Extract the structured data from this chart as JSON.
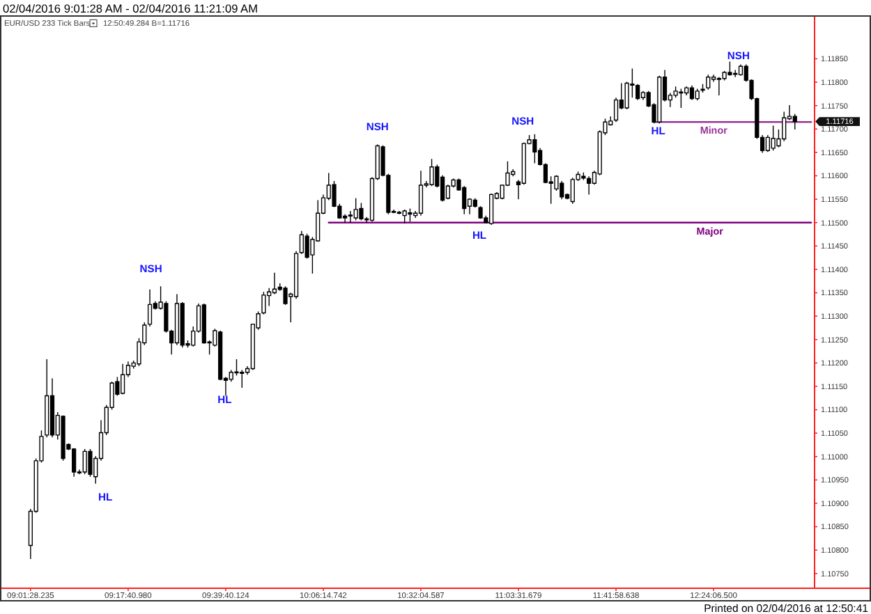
{
  "chart_data": {
    "type": "candlestick",
    "title": "02/04/2016 9:01:28 AM - 02/04/2016 11:21:09 AM",
    "subtitle": "EUR/USD 233 Tick Bars",
    "color": "#000000",
    "categories": [
      "09:01:28.235",
      null,
      null,
      null,
      null,
      null,
      null,
      null,
      null,
      null,
      null,
      null,
      null,
      null,
      null,
      null,
      null,
      null,
      "09:17:40.980",
      null,
      null,
      null,
      null,
      null,
      null,
      null,
      null,
      null,
      null,
      null,
      null,
      null,
      null,
      null,
      null,
      null,
      "09:39:40.124",
      null,
      null,
      null,
      null,
      null,
      null,
      null,
      null,
      null,
      null,
      null,
      null,
      null,
      null,
      null,
      null,
      null,
      "10:06:14.742",
      null,
      null,
      null,
      null,
      null,
      null,
      null,
      null,
      null,
      null,
      null,
      null,
      null,
      null,
      null,
      null,
      null,
      "10:32:04.587",
      null,
      null,
      null,
      null,
      null,
      null,
      null,
      null,
      null,
      null,
      null,
      null,
      null,
      null,
      null,
      null,
      null,
      "11:03:31.679",
      null,
      null,
      null,
      null,
      null,
      null,
      null,
      null,
      null,
      null,
      null,
      null,
      null,
      null,
      null,
      null,
      null,
      "11:41:58.638",
      null,
      null,
      null,
      null,
      null,
      null,
      null,
      null,
      null,
      null,
      null,
      null,
      null,
      null,
      null,
      null,
      null,
      "12:24:06.500",
      null,
      null,
      null,
      null,
      null,
      null,
      null,
      null,
      null,
      null,
      null,
      null,
      null,
      null,
      null,
      null,
      null,
      null
    ],
    "ohlc": [
      [
        1.1081,
        1.10888,
        1.10781,
        1.10883
      ],
      [
        1.10883,
        1.10996,
        1.1088,
        1.10991
      ],
      [
        1.10991,
        1.11056,
        1.10987,
        1.11043
      ],
      [
        1.11046,
        1.11208,
        1.11041,
        1.1113
      ],
      [
        1.1113,
        1.11167,
        1.11041,
        1.11046
      ],
      [
        1.11046,
        1.11095,
        1.11036,
        1.11088
      ],
      [
        1.11086,
        1.11088,
        1.10991,
        1.10996
      ],
      [
        1.11026,
        1.11028,
        1.11014,
        1.11016
      ],
      [
        1.11016,
        1.11018,
        1.10957,
        1.10967
      ],
      [
        1.10967,
        1.10972,
        1.10962,
        1.10965
      ],
      [
        1.10967,
        1.11016,
        1.10962,
        1.11011
      ],
      [
        1.11011,
        1.11016,
        1.10957,
        1.10962
      ],
      [
        1.10957,
        1.11001,
        1.10942,
        1.10996
      ],
      [
        1.10996,
        1.11078,
        1.10991,
        1.11051
      ],
      [
        1.11051,
        1.1111,
        1.11046,
        1.11105
      ],
      [
        1.11105,
        1.1116,
        1.111,
        1.11157
      ],
      [
        1.1116,
        1.1117,
        1.1113,
        1.11133
      ],
      [
        1.11135,
        1.11198,
        1.11133,
        1.11175
      ],
      [
        1.11175,
        1.11203,
        1.1117,
        1.11195
      ],
      [
        1.11193,
        1.11205,
        1.11188,
        1.112
      ],
      [
        1.11198,
        1.11253,
        1.11193,
        1.11245
      ],
      [
        1.11243,
        1.11287,
        1.11238,
        1.11281
      ],
      [
        1.11283,
        1.11357,
        1.11278,
        1.11325
      ],
      [
        1.11327,
        1.11332,
        1.11314,
        1.11317
      ],
      [
        1.11317,
        1.11364,
        1.11314,
        1.1133
      ],
      [
        1.11327,
        1.11332,
        1.11265,
        1.11268
      ],
      [
        1.11268,
        1.11271,
        1.11218,
        1.11243
      ],
      [
        1.11243,
        1.11347,
        1.11238,
        1.11327
      ],
      [
        1.11327,
        1.1133,
        1.11233,
        1.11238
      ],
      [
        1.11241,
        1.11248,
        1.11233,
        1.11238
      ],
      [
        1.11238,
        1.11278,
        1.11235,
        1.11268
      ],
      [
        1.11268,
        1.11327,
        1.11265,
        1.11322
      ],
      [
        1.11324,
        1.11327,
        1.11241,
        1.11243
      ],
      [
        1.11245,
        1.11248,
        1.11218,
        1.11243
      ],
      [
        1.11238,
        1.11273,
        1.11235,
        1.11269
      ],
      [
        1.11266,
        1.11269,
        1.11163,
        1.11165
      ],
      [
        1.11167,
        1.1117,
        1.1113,
        1.11163
      ],
      [
        1.11165,
        1.11185,
        1.1116,
        1.1118
      ],
      [
        1.11179,
        1.11208,
        1.11173,
        1.11181
      ],
      [
        1.1118,
        1.11185,
        1.11147,
        1.11178
      ],
      [
        1.1118,
        1.11193,
        1.11175,
        1.11188
      ],
      [
        1.11188,
        1.11284,
        1.11185,
        1.11283
      ],
      [
        1.11275,
        1.1131,
        1.11271,
        1.11305
      ],
      [
        1.11307,
        1.11352,
        1.11304,
        1.11345
      ],
      [
        1.11344,
        1.1136,
        1.11322,
        1.11352
      ],
      [
        1.1135,
        1.11393,
        1.11347,
        1.11358
      ],
      [
        1.11362,
        1.1137,
        1.11354,
        1.11357
      ],
      [
        1.1136,
        1.11364,
        1.11324,
        1.11327
      ],
      [
        1.11342,
        1.1135,
        1.11287,
        1.11347
      ],
      [
        1.11342,
        1.11439,
        1.11337,
        1.11434
      ],
      [
        1.11436,
        1.11482,
        1.11433,
        1.11474
      ],
      [
        1.11471,
        1.11476,
        1.11423,
        1.11426
      ],
      [
        1.11431,
        1.11469,
        1.11391,
        1.11464
      ],
      [
        1.11461,
        1.11548,
        1.11459,
        1.1152
      ],
      [
        1.1152,
        1.1156,
        1.11518,
        1.11553
      ],
      [
        1.11552,
        1.11606,
        1.11548,
        1.1158
      ],
      [
        1.11581,
        1.11589,
        1.11533,
        1.11535
      ],
      [
        1.11535,
        1.1154,
        1.11508,
        1.1151
      ],
      [
        1.11514,
        1.11518,
        1.115,
        1.1151
      ],
      [
        1.11514,
        1.11525,
        1.115,
        1.11516
      ],
      [
        1.1151,
        1.11552,
        1.11505,
        1.11528
      ],
      [
        1.1153,
        1.11542,
        1.11505,
        1.11508
      ],
      [
        1.11508,
        1.11512,
        1.115,
        1.11506
      ],
      [
        1.11505,
        1.11597,
        1.11502,
        1.11594
      ],
      [
        1.11594,
        1.11667,
        1.11591,
        1.11664
      ],
      [
        1.11662,
        1.11665,
        1.11599,
        1.11601
      ],
      [
        1.11601,
        1.11604,
        1.11518,
        1.11522
      ],
      [
        1.11524,
        1.11528,
        1.1152,
        1.11522
      ],
      [
        1.11522,
        1.11525,
        1.11518,
        1.1152
      ],
      [
        1.11515,
        1.11528,
        1.11498,
        1.11525
      ],
      [
        1.11521,
        1.1153,
        1.11502,
        1.11518
      ],
      [
        1.11515,
        1.11525,
        1.1151,
        1.1152
      ],
      [
        1.1152,
        1.11611,
        1.11515,
        1.1158
      ],
      [
        1.1158,
        1.11589,
        1.11575,
        1.11583
      ],
      [
        1.11581,
        1.11636,
        1.11578,
        1.11619
      ],
      [
        1.11619,
        1.11624,
        1.11575,
        1.11578
      ],
      [
        1.11597,
        1.11601,
        1.11545,
        1.11548
      ],
      [
        1.11552,
        1.11581,
        1.1155,
        1.11578
      ],
      [
        1.11578,
        1.11594,
        1.11575,
        1.11591
      ],
      [
        1.11591,
        1.11594,
        1.11568,
        1.1157
      ],
      [
        1.11575,
        1.11578,
        1.11518,
        1.1153
      ],
      [
        1.11535,
        1.11552,
        1.11518,
        1.1155
      ],
      [
        1.11548,
        1.11552,
        1.11532,
        1.11535
      ],
      [
        1.11532,
        1.11535,
        1.11508,
        1.1151
      ],
      [
        1.1151,
        1.11515,
        1.11498,
        1.115
      ],
      [
        1.11498,
        1.11562,
        1.11495,
        1.1156
      ],
      [
        1.11552,
        1.11565,
        1.1155,
        1.11562
      ],
      [
        1.11552,
        1.11581,
        1.1155,
        1.1158
      ],
      [
        1.1158,
        1.11631,
        1.11578,
        1.11606
      ],
      [
        1.11603,
        1.11614,
        1.11599,
        1.11609
      ],
      [
        1.11587,
        1.11591,
        1.1155,
        1.11581
      ],
      [
        1.11584,
        1.11671,
        1.11581,
        1.11669
      ],
      [
        1.11669,
        1.11687,
        1.11667,
        1.11677
      ],
      [
        1.11677,
        1.11689,
        1.11627,
        1.11651
      ],
      [
        1.11654,
        1.11659,
        1.11622,
        1.11624
      ],
      [
        1.11624,
        1.11627,
        1.11584,
        1.11586
      ],
      [
        1.11587,
        1.11599,
        1.1154,
        1.11584
      ],
      [
        1.11572,
        1.11601,
        1.11568,
        1.11599
      ],
      [
        1.11584,
        1.11589,
        1.1155,
        1.11555
      ],
      [
        1.1156,
        1.11562,
        1.1155,
        1.11552
      ],
      [
        1.11545,
        1.11596,
        1.1154,
        1.11592
      ],
      [
        1.11592,
        1.11609,
        1.11589,
        1.11603
      ],
      [
        1.11599,
        1.11607,
        1.11591,
        1.11595
      ],
      [
        1.11594,
        1.11599,
        1.1156,
        1.11584
      ],
      [
        1.11584,
        1.11611,
        1.11581,
        1.11607
      ],
      [
        1.11604,
        1.11697,
        1.11601,
        1.11694
      ],
      [
        1.11692,
        1.11722,
        1.11687,
        1.11715
      ],
      [
        1.11709,
        1.11727,
        1.11707,
        1.11717
      ],
      [
        1.11719,
        1.11767,
        1.11715,
        1.11762
      ],
      [
        1.11762,
        1.11798,
        1.11742,
        1.11745
      ],
      [
        1.11745,
        1.11801,
        1.11742,
        1.11798
      ],
      [
        1.11796,
        1.11829,
        1.11767,
        1.11794
      ],
      [
        1.11793,
        1.11796,
        1.11762,
        1.11765
      ],
      [
        1.11767,
        1.11781,
        1.11762,
        1.11778
      ],
      [
        1.11778,
        1.11781,
        1.11747,
        1.11749
      ],
      [
        1.11752,
        1.11755,
        1.11712,
        1.11715
      ],
      [
        1.11715,
        1.11814,
        1.11712,
        1.11811
      ],
      [
        1.11811,
        1.11826,
        1.11759,
        1.11762
      ],
      [
        1.11762,
        1.11777,
        1.11747,
        1.11772
      ],
      [
        1.11772,
        1.11791,
        1.11767,
        1.11781
      ],
      [
        1.11779,
        1.11786,
        1.11745,
        1.11777
      ],
      [
        1.11777,
        1.11791,
        1.11772,
        1.11788
      ],
      [
        1.11788,
        1.11793,
        1.11762,
        1.11765
      ],
      [
        1.11765,
        1.11786,
        1.11761,
        1.11781
      ],
      [
        1.11783,
        1.11796,
        1.11778,
        1.11785
      ],
      [
        1.11788,
        1.11816,
        1.11784,
        1.11811
      ],
      [
        1.11806,
        1.11816,
        1.11801,
        1.11811
      ],
      [
        1.11808,
        1.11811,
        1.11772,
        1.11806
      ],
      [
        1.11808,
        1.11824,
        1.11804,
        1.11821
      ],
      [
        1.11821,
        1.11844,
        1.11814,
        1.11816
      ],
      [
        1.11819,
        1.11826,
        1.11811,
        1.11818
      ],
      [
        1.11816,
        1.11838,
        1.11814,
        1.11834
      ],
      [
        1.11834,
        1.11838,
        1.11801,
        1.11804
      ],
      [
        1.11804,
        1.11806,
        1.11762,
        1.11765
      ],
      [
        1.11765,
        1.11767,
        1.11679,
        1.11682
      ],
      [
        1.11682,
        1.11687,
        1.11649,
        1.11654
      ],
      [
        1.11654,
        1.11687,
        1.11651,
        1.11682
      ],
      [
        1.11659,
        1.11707,
        1.11654,
        1.1168
      ],
      [
        1.11664,
        1.11699,
        1.11661,
        1.11679
      ],
      [
        1.11679,
        1.11737,
        1.11674,
        1.11724
      ],
      [
        1.11722,
        1.11751,
        1.11719,
        1.11727
      ],
      [
        1.11727,
        1.11732,
        1.11699,
        1.11716
      ],
      null,
      null,
      null
    ],
    "series": [
      {
        "type": "line",
        "name": "Major",
        "color": "#800080",
        "values": [
          null,
          null,
          null,
          null,
          null,
          null,
          null,
          null,
          null,
          null,
          null,
          null,
          null,
          null,
          null,
          null,
          null,
          null,
          null,
          null,
          null,
          null,
          null,
          null,
          null,
          null,
          null,
          null,
          null,
          null,
          null,
          null,
          null,
          null,
          null,
          null,
          null,
          null,
          null,
          null,
          null,
          null,
          null,
          null,
          null,
          null,
          null,
          null,
          null,
          null,
          null,
          null,
          null,
          null,
          null,
          1.115,
          1.115,
          1.115,
          1.115,
          1.115,
          1.115,
          1.115,
          1.115,
          1.115,
          1.115,
          1.115,
          1.115,
          1.115,
          1.115,
          1.115,
          1.115,
          1.115,
          1.115,
          1.115,
          1.115,
          1.115,
          1.115,
          1.115,
          1.115,
          1.115,
          1.115,
          1.115,
          1.115,
          1.115,
          1.115,
          1.115,
          1.115,
          1.115,
          1.115,
          1.115,
          1.115,
          1.115,
          1.115,
          1.115,
          1.115,
          1.115,
          1.115,
          1.115,
          1.115,
          1.115,
          1.115,
          1.115,
          1.115,
          1.115,
          1.115,
          1.115,
          1.115,
          1.115,
          1.115,
          1.115,
          1.115,
          1.115,
          1.115,
          1.115,
          1.115,
          1.115,
          1.115,
          1.115,
          1.115,
          1.115,
          1.115,
          1.115,
          1.115,
          1.115,
          1.115,
          1.115,
          1.115,
          1.115,
          1.115,
          1.115,
          1.115,
          1.115,
          1.115,
          1.115,
          1.115,
          1.115,
          1.115,
          1.115,
          1.115,
          1.115,
          1.115,
          1.115,
          1.115,
          1.115,
          1.115
        ]
      },
      {
        "type": "line",
        "name": "Minor",
        "color": "#993399",
        "values": [
          null,
          null,
          null,
          null,
          null,
          null,
          null,
          null,
          null,
          null,
          null,
          null,
          null,
          null,
          null,
          null,
          null,
          null,
          null,
          null,
          null,
          null,
          null,
          null,
          null,
          null,
          null,
          null,
          null,
          null,
          null,
          null,
          null,
          null,
          null,
          null,
          null,
          null,
          null,
          null,
          null,
          null,
          null,
          null,
          null,
          null,
          null,
          null,
          null,
          null,
          null,
          null,
          null,
          null,
          null,
          null,
          null,
          null,
          null,
          null,
          null,
          null,
          null,
          null,
          null,
          null,
          null,
          null,
          null,
          null,
          null,
          null,
          null,
          null,
          null,
          null,
          null,
          null,
          null,
          null,
          null,
          null,
          null,
          null,
          null,
          null,
          null,
          null,
          null,
          null,
          null,
          null,
          null,
          null,
          null,
          null,
          null,
          null,
          null,
          null,
          null,
          null,
          null,
          null,
          null,
          null,
          null,
          null,
          null,
          null,
          null,
          null,
          null,
          null,
          null,
          1.11715,
          1.11715,
          1.11715,
          1.11715,
          1.11715,
          1.11715,
          1.11715,
          1.11715,
          1.11715,
          1.11715,
          1.11715,
          1.11715,
          1.11715,
          1.11715,
          1.11715,
          1.11715,
          1.11715,
          1.11715,
          1.11715,
          1.11715,
          1.11715,
          1.11715,
          1.11715,
          1.11715,
          1.11715,
          1.11715,
          1.11715,
          1.11715,
          1.11715,
          1.11715
        ]
      }
    ],
    "ylim": [
      1.1072,
      1.1194
    ],
    "yticks": [
      {
        "value": 1.1075,
        "label": "1.10750"
      },
      {
        "value": 1.108,
        "label": "1.10800"
      },
      {
        "value": 1.1085,
        "label": "1.10850"
      },
      {
        "value": 1.109,
        "label": "1.10900"
      },
      {
        "value": 1.1095,
        "label": "1.10950"
      },
      {
        "value": 1.11,
        "label": "1.11000"
      },
      {
        "value": 1.1105,
        "label": "1.11050"
      },
      {
        "value": 1.111,
        "label": "1.11100"
      },
      {
        "value": 1.1115,
        "label": "1.11150"
      },
      {
        "value": 1.112,
        "label": "1.11200"
      },
      {
        "value": 1.1125,
        "label": "1.11250"
      },
      {
        "value": 1.113,
        "label": "1.11300"
      },
      {
        "value": 1.1135,
        "label": "1.11350"
      },
      {
        "value": 1.114,
        "label": "1.11400"
      },
      {
        "value": 1.1145,
        "label": "1.11450"
      },
      {
        "value": 1.115,
        "label": "1.11500"
      },
      {
        "value": 1.1155,
        "label": "1.11550"
      },
      {
        "value": 1.116,
        "label": "1.11600"
      },
      {
        "value": 1.1165,
        "label": "1.11650"
      },
      {
        "value": 1.117,
        "label": "1.11700"
      },
      {
        "value": 1.1175,
        "label": "1.11750"
      },
      {
        "value": 1.118,
        "label": "1.11800"
      },
      {
        "value": 1.1185,
        "label": "1.11850"
      }
    ],
    "annotations": [
      "NSH",
      "HL",
      "HL",
      "NSH",
      "HL",
      "NSH",
      "HL",
      "NSH",
      "1.11716",
      "12:50:49.284 B=1.11716",
      "Printed on 02/04/2016 at 12:50:41"
    ]
  }
}
